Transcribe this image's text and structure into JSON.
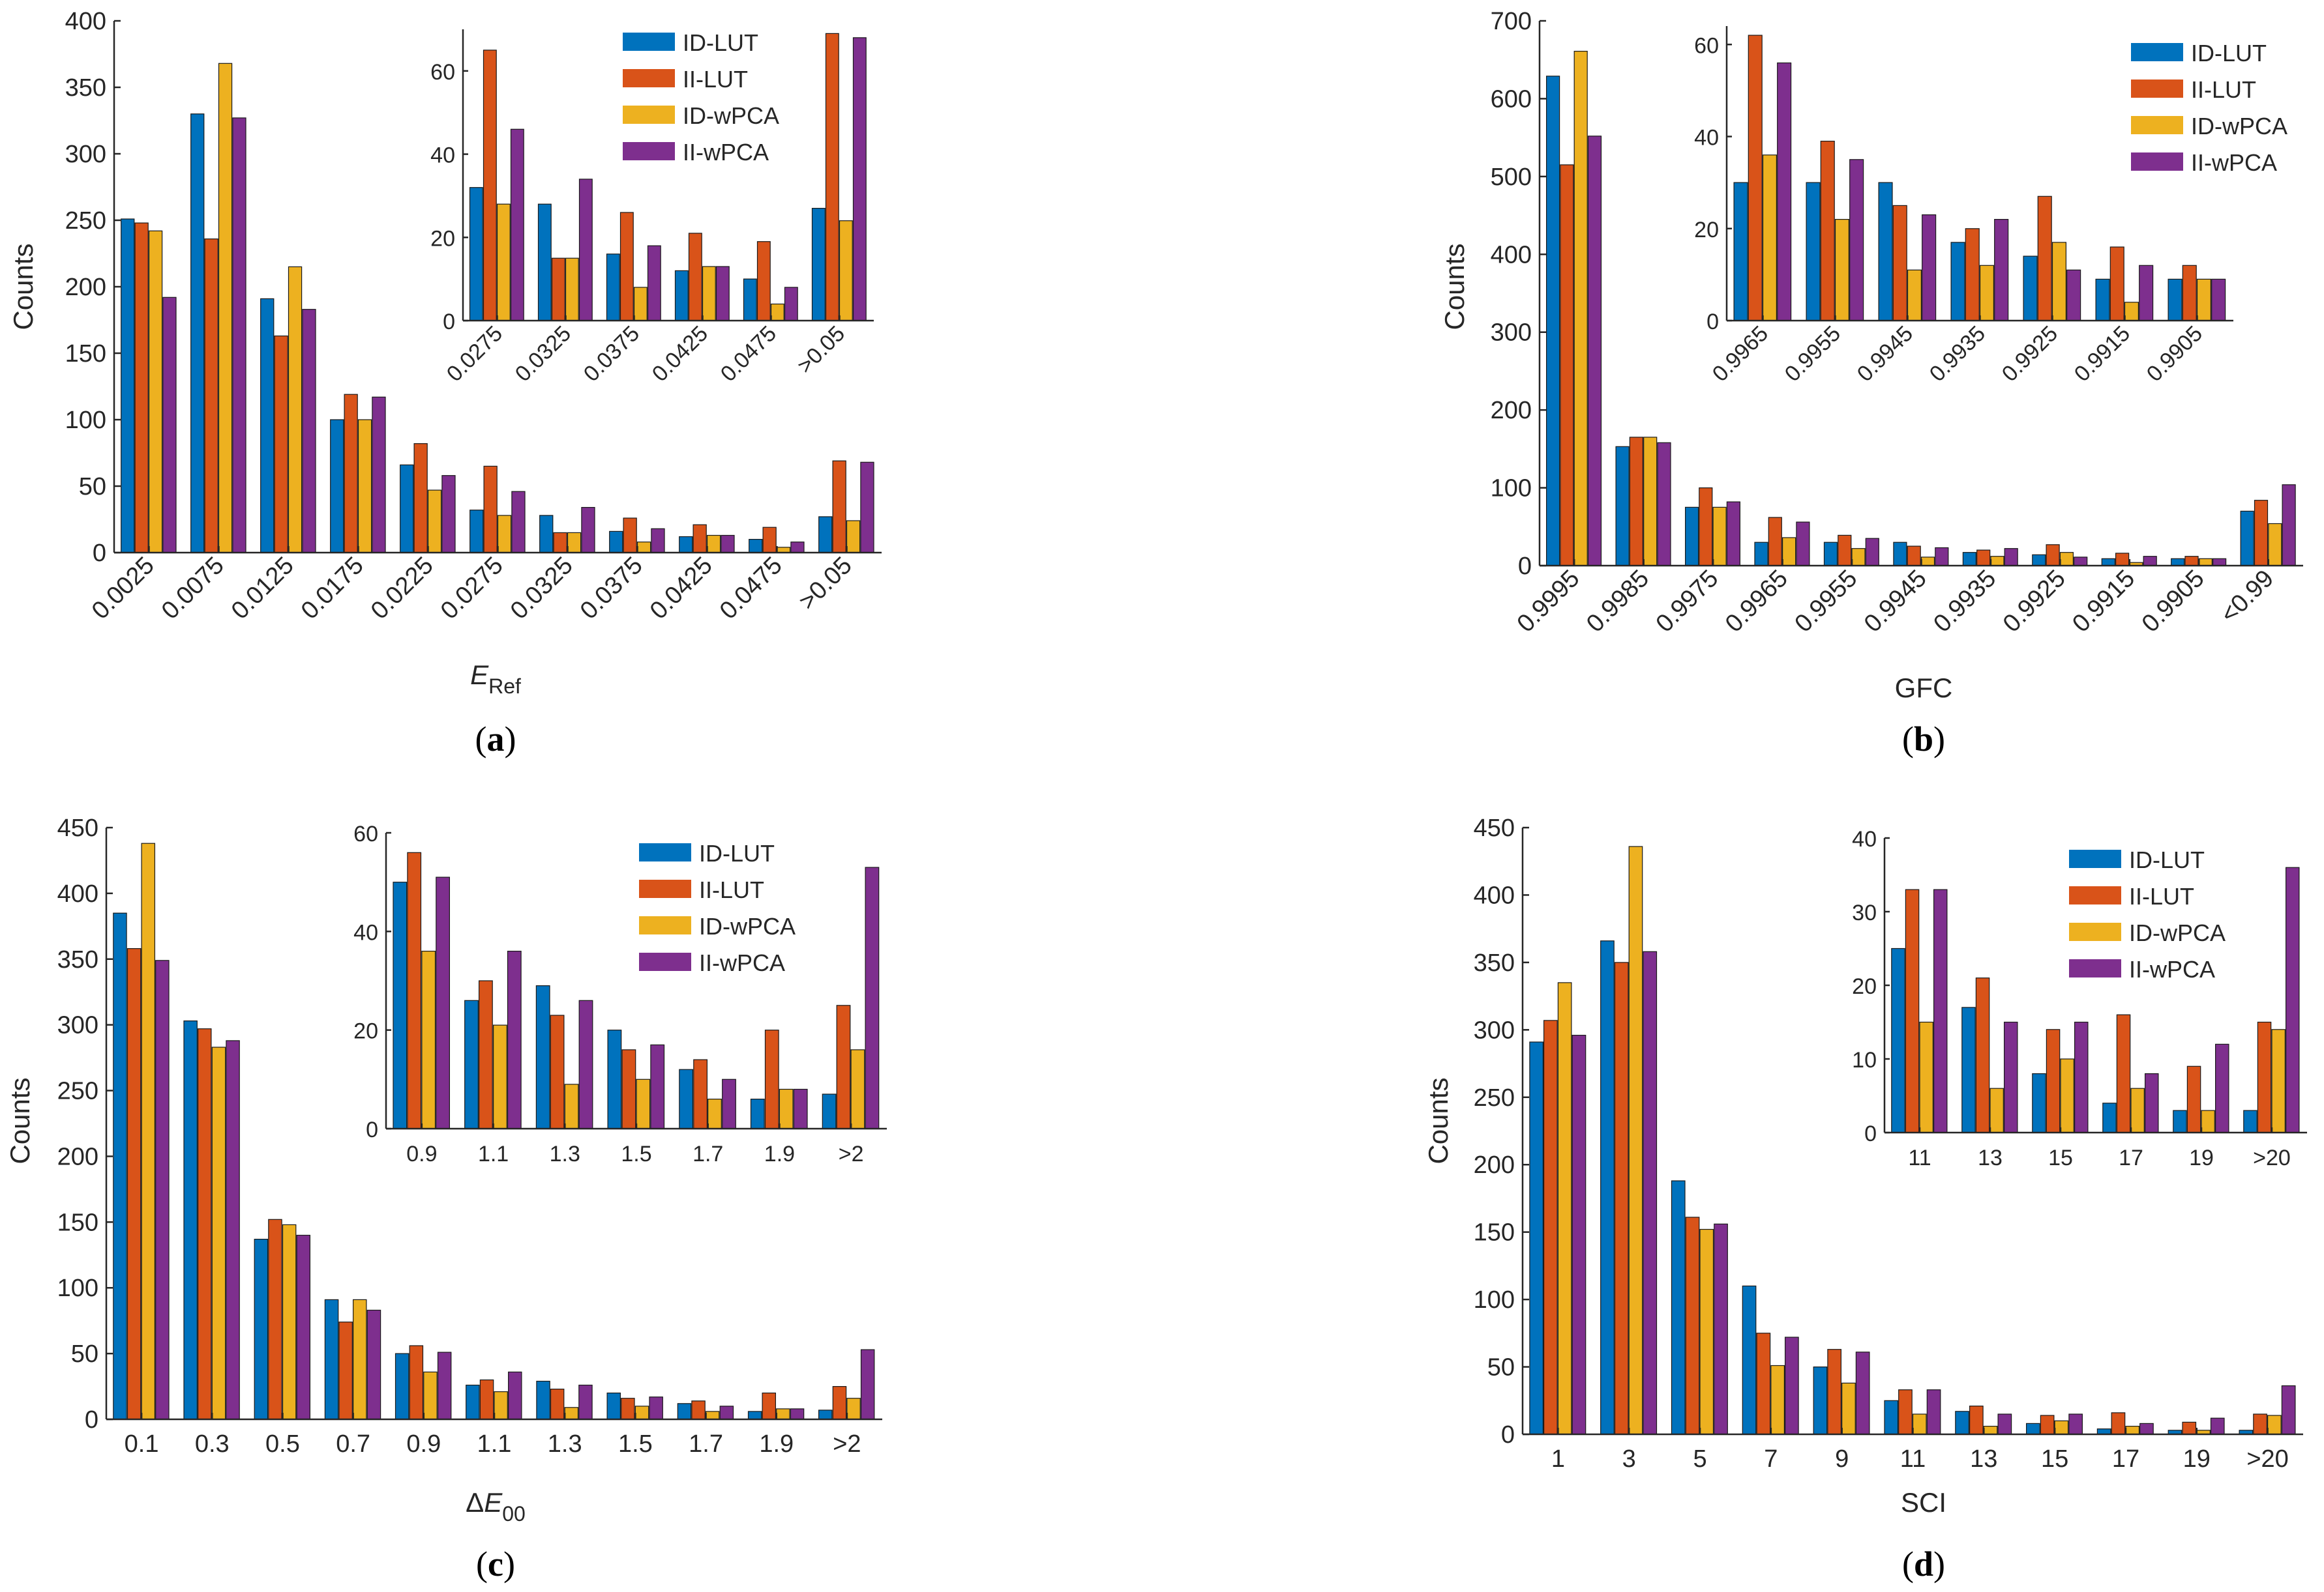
{
  "colors": {
    "ID-LUT": "#0072BD",
    "II-LUT": "#D95319",
    "ID-wPCA": "#EDB120",
    "II-wPCA": "#7E2F8E"
  },
  "chart_data": [
    {
      "type": "bar",
      "panel": "(a)",
      "panel_letter": "a",
      "ylabel": "Counts",
      "xlabel": "E",
      "xlabel_sub": "Ref",
      "xlabel_italic": true,
      "legend": [
        "ID-LUT",
        "II-LUT",
        "ID-wPCA",
        "II-wPCA"
      ],
      "legend_position": "top-right",
      "categories": [
        "0.0025",
        "0.0075",
        "0.0125",
        "0.0175",
        "0.0225",
        "0.0275",
        "0.0325",
        "0.0375",
        "0.0425",
        "0.0475",
        ">0.05"
      ],
      "ylim": [
        0,
        400
      ],
      "yticks": [
        0,
        50,
        100,
        150,
        200,
        250,
        300,
        350,
        400
      ],
      "series": [
        {
          "name": "ID-LUT",
          "values": [
            251,
            330,
            191,
            100,
            66,
            32,
            28,
            16,
            12,
            10,
            27
          ]
        },
        {
          "name": "II-LUT",
          "values": [
            248,
            236,
            163,
            119,
            82,
            65,
            15,
            26,
            21,
            19,
            69
          ]
        },
        {
          "name": "ID-wPCA",
          "values": [
            242,
            368,
            215,
            100,
            47,
            28,
            15,
            8,
            13,
            4,
            24
          ]
        },
        {
          "name": "II-wPCA",
          "values": [
            192,
            327,
            183,
            117,
            58,
            46,
            34,
            18,
            13,
            8,
            68
          ]
        }
      ],
      "inset": {
        "categories": [
          "0.0275",
          "0.0325",
          "0.0375",
          "0.0425",
          "0.0475",
          ">0.05"
        ],
        "ylim": [
          0,
          70
        ],
        "yticks": [
          0,
          20,
          40,
          60
        ],
        "series": [
          {
            "name": "ID-LUT",
            "values": [
              32,
              28,
              16,
              12,
              10,
              27
            ]
          },
          {
            "name": "II-LUT",
            "values": [
              65,
              15,
              26,
              21,
              19,
              69
            ]
          },
          {
            "name": "ID-wPCA",
            "values": [
              28,
              15,
              8,
              13,
              4,
              24
            ]
          },
          {
            "name": "II-wPCA",
            "values": [
              46,
              34,
              18,
              13,
              8,
              68
            ]
          }
        ]
      }
    },
    {
      "type": "bar",
      "panel": "(b)",
      "panel_letter": "b",
      "ylabel": "Counts",
      "xlabel": "GFC",
      "xlabel_sub": "",
      "xlabel_italic": false,
      "legend": [
        "ID-LUT",
        "II-LUT",
        "ID-wPCA",
        "II-wPCA"
      ],
      "legend_position": "top-right",
      "categories": [
        "0.9995",
        "0.9985",
        "0.9975",
        "0.9965",
        "0.9955",
        "0.9945",
        "0.9935",
        "0.9925",
        "0.9915",
        "0.9905",
        "<0.99"
      ],
      "ylim": [
        0,
        700
      ],
      "yticks": [
        0,
        100,
        200,
        300,
        400,
        500,
        600,
        700
      ],
      "series": [
        {
          "name": "ID-LUT",
          "values": [
            629,
            153,
            75,
            30,
            30,
            30,
            17,
            14,
            9,
            9,
            70
          ]
        },
        {
          "name": "II-LUT",
          "values": [
            515,
            165,
            100,
            62,
            39,
            25,
            20,
            27,
            16,
            12,
            84
          ]
        },
        {
          "name": "ID-wPCA",
          "values": [
            661,
            165,
            75,
            36,
            22,
            11,
            12,
            17,
            4,
            9,
            54
          ]
        },
        {
          "name": "II-wPCA",
          "values": [
            552,
            158,
            82,
            56,
            35,
            23,
            22,
            11,
            12,
            9,
            104
          ]
        }
      ],
      "inset": {
        "categories": [
          "0.9965",
          "0.9955",
          "0.9945",
          "0.9935",
          "0.9925",
          "0.9915",
          "0.9905"
        ],
        "ylim": [
          0,
          64
        ],
        "yticks": [
          0,
          20,
          40,
          60
        ],
        "series": [
          {
            "name": "ID-LUT",
            "values": [
              30,
              30,
              30,
              17,
              14,
              9,
              9
            ]
          },
          {
            "name": "II-LUT",
            "values": [
              62,
              39,
              25,
              20,
              27,
              16,
              12
            ]
          },
          {
            "name": "ID-wPCA",
            "values": [
              36,
              22,
              11,
              12,
              17,
              4,
              9
            ]
          },
          {
            "name": "II-wPCA",
            "values": [
              56,
              35,
              23,
              22,
              11,
              12,
              9
            ]
          }
        ]
      }
    },
    {
      "type": "bar",
      "panel": "(c)",
      "panel_letter": "c",
      "ylabel": "Counts",
      "xlabel": "ΔE",
      "xlabel_sub": "00",
      "xlabel_italic": true,
      "legend": [
        "ID-LUT",
        "II-LUT",
        "ID-wPCA",
        "II-wPCA"
      ],
      "legend_position": "top-right",
      "categories": [
        "0.1",
        "0.3",
        "0.5",
        "0.7",
        "0.9",
        "1.1",
        "1.3",
        "1.5",
        "1.7",
        "1.9",
        ">2"
      ],
      "ylim": [
        0,
        450
      ],
      "yticks": [
        0,
        50,
        100,
        150,
        200,
        250,
        300,
        350,
        400,
        450
      ],
      "series": [
        {
          "name": "ID-LUT",
          "values": [
            385,
            303,
            137,
            91,
            50,
            26,
            29,
            20,
            12,
            6,
            7
          ]
        },
        {
          "name": "II-LUT",
          "values": [
            358,
            297,
            152,
            74,
            56,
            30,
            23,
            16,
            14,
            20,
            25
          ]
        },
        {
          "name": "ID-wPCA",
          "values": [
            438,
            283,
            148,
            91,
            36,
            21,
            9,
            10,
            6,
            8,
            16
          ]
        },
        {
          "name": "II-wPCA",
          "values": [
            349,
            288,
            140,
            83,
            51,
            36,
            26,
            17,
            10,
            8,
            53
          ]
        }
      ],
      "inset": {
        "categories": [
          "0.9",
          "1.1",
          "1.3",
          "1.5",
          "1.7",
          "1.9",
          ">2"
        ],
        "ylim": [
          0,
          60
        ],
        "yticks": [
          0,
          20,
          40,
          60
        ],
        "series": [
          {
            "name": "ID-LUT",
            "values": [
              50,
              26,
              29,
              20,
              12,
              6,
              7
            ]
          },
          {
            "name": "II-LUT",
            "values": [
              56,
              30,
              23,
              16,
              14,
              20,
              25
            ]
          },
          {
            "name": "ID-wPCA",
            "values": [
              36,
              21,
              9,
              10,
              6,
              8,
              16
            ]
          },
          {
            "name": "II-wPCA",
            "values": [
              51,
              36,
              26,
              17,
              10,
              8,
              53
            ]
          }
        ]
      }
    },
    {
      "type": "bar",
      "panel": "(d)",
      "panel_letter": "d",
      "ylabel": "Counts",
      "xlabel": "SCI",
      "xlabel_sub": "",
      "xlabel_italic": false,
      "legend": [
        "ID-LUT",
        "II-LUT",
        "ID-wPCA",
        "II-wPCA"
      ],
      "legend_position": "top-right",
      "categories": [
        "1",
        "3",
        "5",
        "7",
        "9",
        "11",
        "13",
        "15",
        "17",
        "19",
        ">20"
      ],
      "ylim": [
        0,
        450
      ],
      "yticks": [
        0,
        50,
        100,
        150,
        200,
        250,
        300,
        350,
        400,
        450
      ],
      "series": [
        {
          "name": "ID-LUT",
          "values": [
            291,
            366,
            188,
            110,
            50,
            25,
            17,
            8,
            4,
            3,
            3
          ]
        },
        {
          "name": "II-LUT",
          "values": [
            307,
            350,
            161,
            75,
            63,
            33,
            21,
            14,
            16,
            9,
            15
          ]
        },
        {
          "name": "ID-wPCA",
          "values": [
            335,
            436,
            152,
            51,
            38,
            15,
            6,
            10,
            6,
            3,
            14
          ]
        },
        {
          "name": "II-wPCA",
          "values": [
            296,
            358,
            156,
            72,
            61,
            33,
            15,
            15,
            8,
            12,
            36
          ]
        }
      ],
      "inset": {
        "categories": [
          "11",
          "13",
          "15",
          "17",
          "19",
          ">20"
        ],
        "ylim": [
          0,
          40
        ],
        "yticks": [
          0,
          10,
          20,
          30,
          40
        ],
        "series": [
          {
            "name": "ID-LUT",
            "values": [
              25,
              17,
              8,
              4,
              3,
              3
            ]
          },
          {
            "name": "II-LUT",
            "values": [
              33,
              21,
              14,
              16,
              9,
              15
            ]
          },
          {
            "name": "ID-wPCA",
            "values": [
              15,
              6,
              10,
              6,
              3,
              14
            ]
          },
          {
            "name": "II-wPCA",
            "values": [
              33,
              15,
              15,
              8,
              12,
              36
            ]
          }
        ]
      }
    }
  ]
}
